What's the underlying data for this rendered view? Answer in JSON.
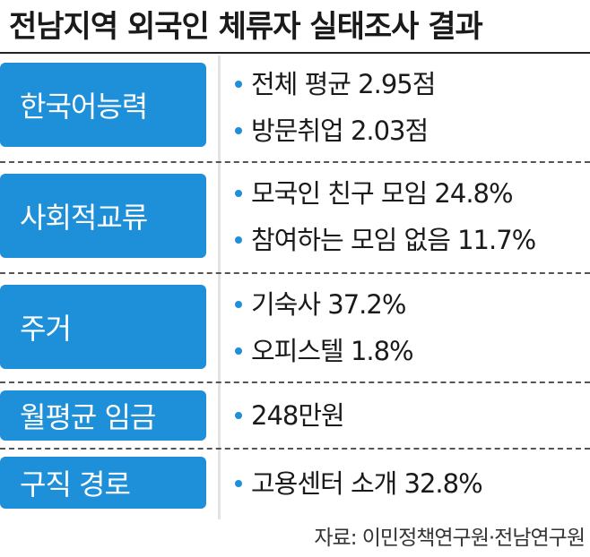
{
  "title": "전남지역 외국인 체류자 실태조사 결과",
  "rows": [
    {
      "category": "한국어능력",
      "items": [
        "전체 평균 2.95점",
        "방문취업 2.03점"
      ]
    },
    {
      "category": "사회적교류",
      "items": [
        "모국인 친구 모임 24.8%",
        "참여하는 모임 없음 11.7%"
      ]
    },
    {
      "category": "주거",
      "items": [
        "기숙사 37.2%",
        "오피스텔 1.8%"
      ]
    },
    {
      "category": "월평균 임금",
      "items": [
        "248만원"
      ]
    },
    {
      "category": "구직 경로",
      "items": [
        "고용센터 소개 32.8%"
      ]
    }
  ],
  "source": "자료: 이민정책연구원·전남연구원",
  "colors": {
    "accent": "#1e8fd9",
    "text": "#1a1a1a"
  }
}
